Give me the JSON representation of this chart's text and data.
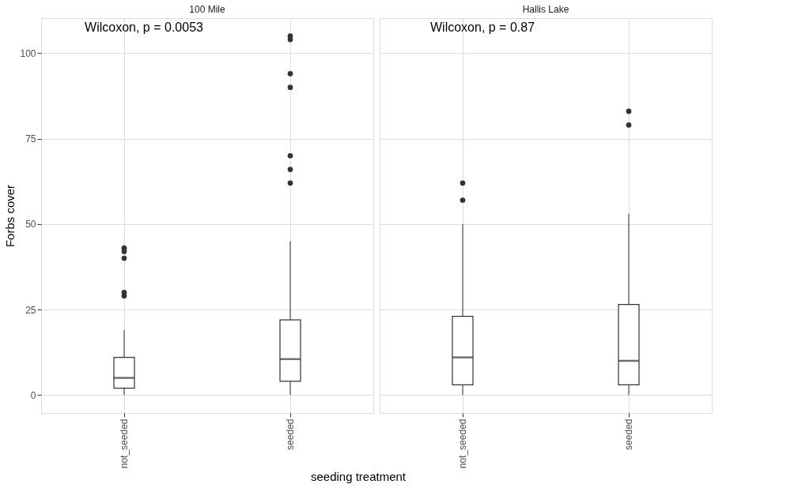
{
  "chart_data": [
    {
      "type": "box",
      "title": "100 Mile",
      "ylabel": "Forbs cover",
      "xlabel": "seeding treatment",
      "categories": [
        "not_seeded",
        "seeded"
      ],
      "boxes": [
        {
          "low": 0,
          "q1": 2,
          "median": 5,
          "q3": 11,
          "high": 19,
          "outliers": [
            29,
            30,
            40,
            42,
            43
          ]
        },
        {
          "low": 0,
          "q1": 4,
          "median": 10.5,
          "q3": 22,
          "high": 45,
          "outliers": [
            62,
            66,
            70,
            90,
            94,
            104,
            105
          ]
        }
      ],
      "annotations": [
        "Wilcoxon, p = 0.0053"
      ],
      "ylim": [
        -5.25,
        110.25
      ],
      "yticks": [
        0,
        25,
        50,
        75,
        100
      ],
      "grid": true
    },
    {
      "type": "box",
      "title": "Hallis Lake",
      "categories": [
        "not_seeded",
        "seeded"
      ],
      "boxes": [
        {
          "low": 0,
          "q1": 3,
          "median": 11,
          "q3": 23,
          "high": 50,
          "outliers": [
            57,
            62
          ]
        },
        {
          "low": 0,
          "q1": 3,
          "median": 10,
          "q3": 26.5,
          "high": 53,
          "outliers": [
            79,
            83
          ]
        }
      ],
      "annotations": [
        "Wilcoxon, p = 0.87"
      ],
      "ylim": [
        -5.25,
        110.25
      ],
      "yticks": [
        0,
        25,
        50,
        75,
        100
      ],
      "grid": true,
      "tick_labels": "x"
    }
  ]
}
